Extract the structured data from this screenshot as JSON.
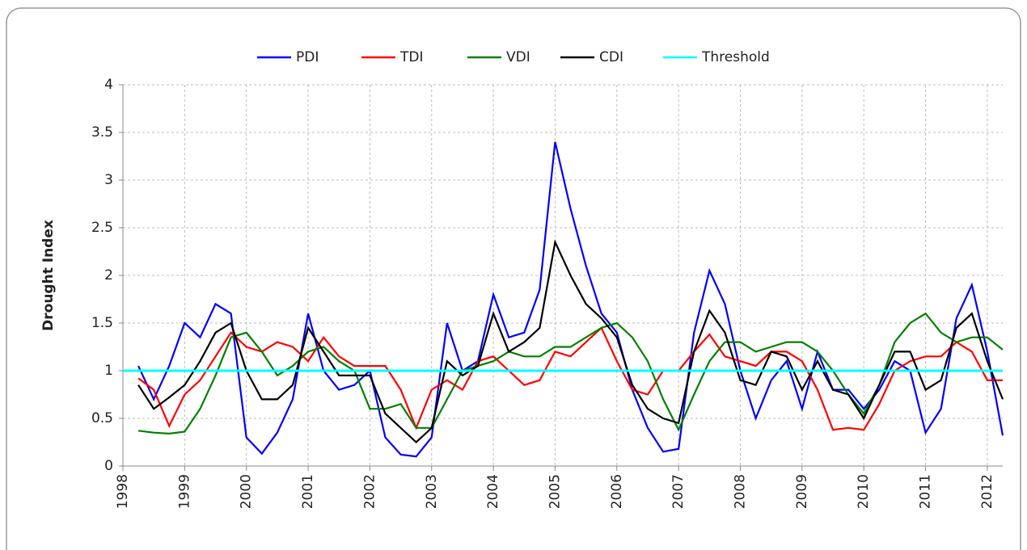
{
  "chart_data": {
    "type": "line",
    "y_label": "Drought Index",
    "x": [
      1998.25,
      1998.5,
      1998.75,
      1999,
      1999.25,
      1999.5,
      1999.75,
      2000,
      2000.25,
      2000.5,
      2000.75,
      2001,
      2001.25,
      2001.5,
      2001.75,
      2002,
      2002.25,
      2002.5,
      2002.75,
      2003,
      2003.25,
      2003.5,
      2003.75,
      2004,
      2004.25,
      2004.5,
      2004.75,
      2005,
      2005.25,
      2005.5,
      2005.75,
      2006,
      2006.25,
      2006.5,
      2006.75,
      2007,
      2007.25,
      2007.5,
      2007.75,
      2008,
      2008.25,
      2008.5,
      2008.75,
      2009,
      2009.25,
      2009.5,
      2009.75,
      2010,
      2010.25,
      2010.5,
      2010.75,
      2011,
      2011.25,
      2011.5,
      2011.75,
      2012,
      2012.25
    ],
    "series": [
      {
        "name": "PDI",
        "color": "#0000ff",
        "values": [
          1.05,
          0.7,
          1.05,
          1.5,
          1.35,
          1.7,
          1.6,
          0.3,
          0.13,
          0.35,
          0.7,
          1.6,
          1.0,
          0.8,
          0.85,
          1.0,
          0.3,
          0.12,
          0.1,
          0.3,
          1.5,
          1.0,
          1.1,
          1.8,
          1.35,
          1.4,
          1.85,
          3.4,
          2.7,
          2.1,
          1.6,
          1.4,
          0.8,
          0.4,
          0.15,
          0.18,
          1.4,
          2.05,
          1.7,
          1.0,
          0.5,
          0.9,
          1.1,
          0.6,
          1.2,
          0.8,
          0.8,
          0.6,
          0.8,
          1.1,
          1.0,
          0.35,
          0.6,
          1.55,
          1.9,
          1.2,
          0.32
        ]
      },
      {
        "name": "TDI",
        "color": "#ff0000",
        "values": [
          0.92,
          0.8,
          0.42,
          0.75,
          0.9,
          1.15,
          1.4,
          1.25,
          1.2,
          1.3,
          1.25,
          1.1,
          1.35,
          1.15,
          1.05,
          1.05,
          1.05,
          0.8,
          0.4,
          0.8,
          0.9,
          0.8,
          1.1,
          1.15,
          1.0,
          0.85,
          0.9,
          1.2,
          1.15,
          1.3,
          1.45,
          1.1,
          0.8,
          0.75,
          1.0,
          1.0,
          1.2,
          1.38,
          1.15,
          1.1,
          1.05,
          1.2,
          1.2,
          1.1,
          0.8,
          0.38,
          0.4,
          0.38,
          0.65,
          1.0,
          1.1,
          1.15,
          1.15,
          1.3,
          1.2,
          0.9,
          0.9
        ]
      },
      {
        "name": "VDI",
        "color": "#008000",
        "values": [
          0.37,
          0.35,
          0.34,
          0.36,
          0.6,
          0.95,
          1.35,
          1.4,
          1.2,
          0.95,
          1.05,
          1.2,
          1.25,
          1.1,
          1.0,
          0.6,
          0.6,
          0.65,
          0.4,
          0.4,
          0.7,
          1.0,
          1.05,
          1.1,
          1.2,
          1.15,
          1.15,
          1.25,
          1.25,
          1.35,
          1.45,
          1.5,
          1.35,
          1.1,
          0.7,
          0.38,
          0.75,
          1.1,
          1.3,
          1.3,
          1.2,
          1.25,
          1.3,
          1.3,
          1.2,
          1.0,
          0.75,
          0.55,
          0.85,
          1.3,
          1.5,
          1.6,
          1.4,
          1.3,
          1.35,
          1.35,
          1.22
        ]
      },
      {
        "name": "CDI",
        "color": "#000000",
        "values": [
          0.85,
          0.6,
          0.72,
          0.85,
          1.1,
          1.4,
          1.5,
          1.0,
          0.7,
          0.7,
          0.85,
          1.45,
          1.2,
          0.95,
          0.95,
          0.95,
          0.55,
          0.4,
          0.25,
          0.4,
          1.1,
          0.95,
          1.05,
          1.6,
          1.2,
          1.3,
          1.45,
          2.35,
          2.0,
          1.7,
          1.55,
          1.35,
          0.85,
          0.6,
          0.5,
          0.45,
          1.2,
          1.63,
          1.4,
          0.9,
          0.85,
          1.2,
          1.15,
          0.8,
          1.1,
          0.8,
          0.75,
          0.5,
          0.85,
          1.2,
          1.2,
          0.8,
          0.9,
          1.45,
          1.6,
          1.1,
          0.7
        ]
      }
    ],
    "threshold": {
      "name": "Threshold",
      "value": 1,
      "color": "#00ffff"
    },
    "xlim": [
      1998,
      2012.25
    ],
    "xticks": [
      1998,
      1999,
      2000,
      2001,
      2002,
      2003,
      2004,
      2005,
      2006,
      2007,
      2008,
      2009,
      2010,
      2011,
      2012
    ],
    "ylim": [
      0,
      4
    ],
    "yticks": [
      0,
      0.5,
      1,
      1.5,
      2,
      2.5,
      3,
      3.5,
      4
    ],
    "grid": true,
    "legend": "top"
  }
}
